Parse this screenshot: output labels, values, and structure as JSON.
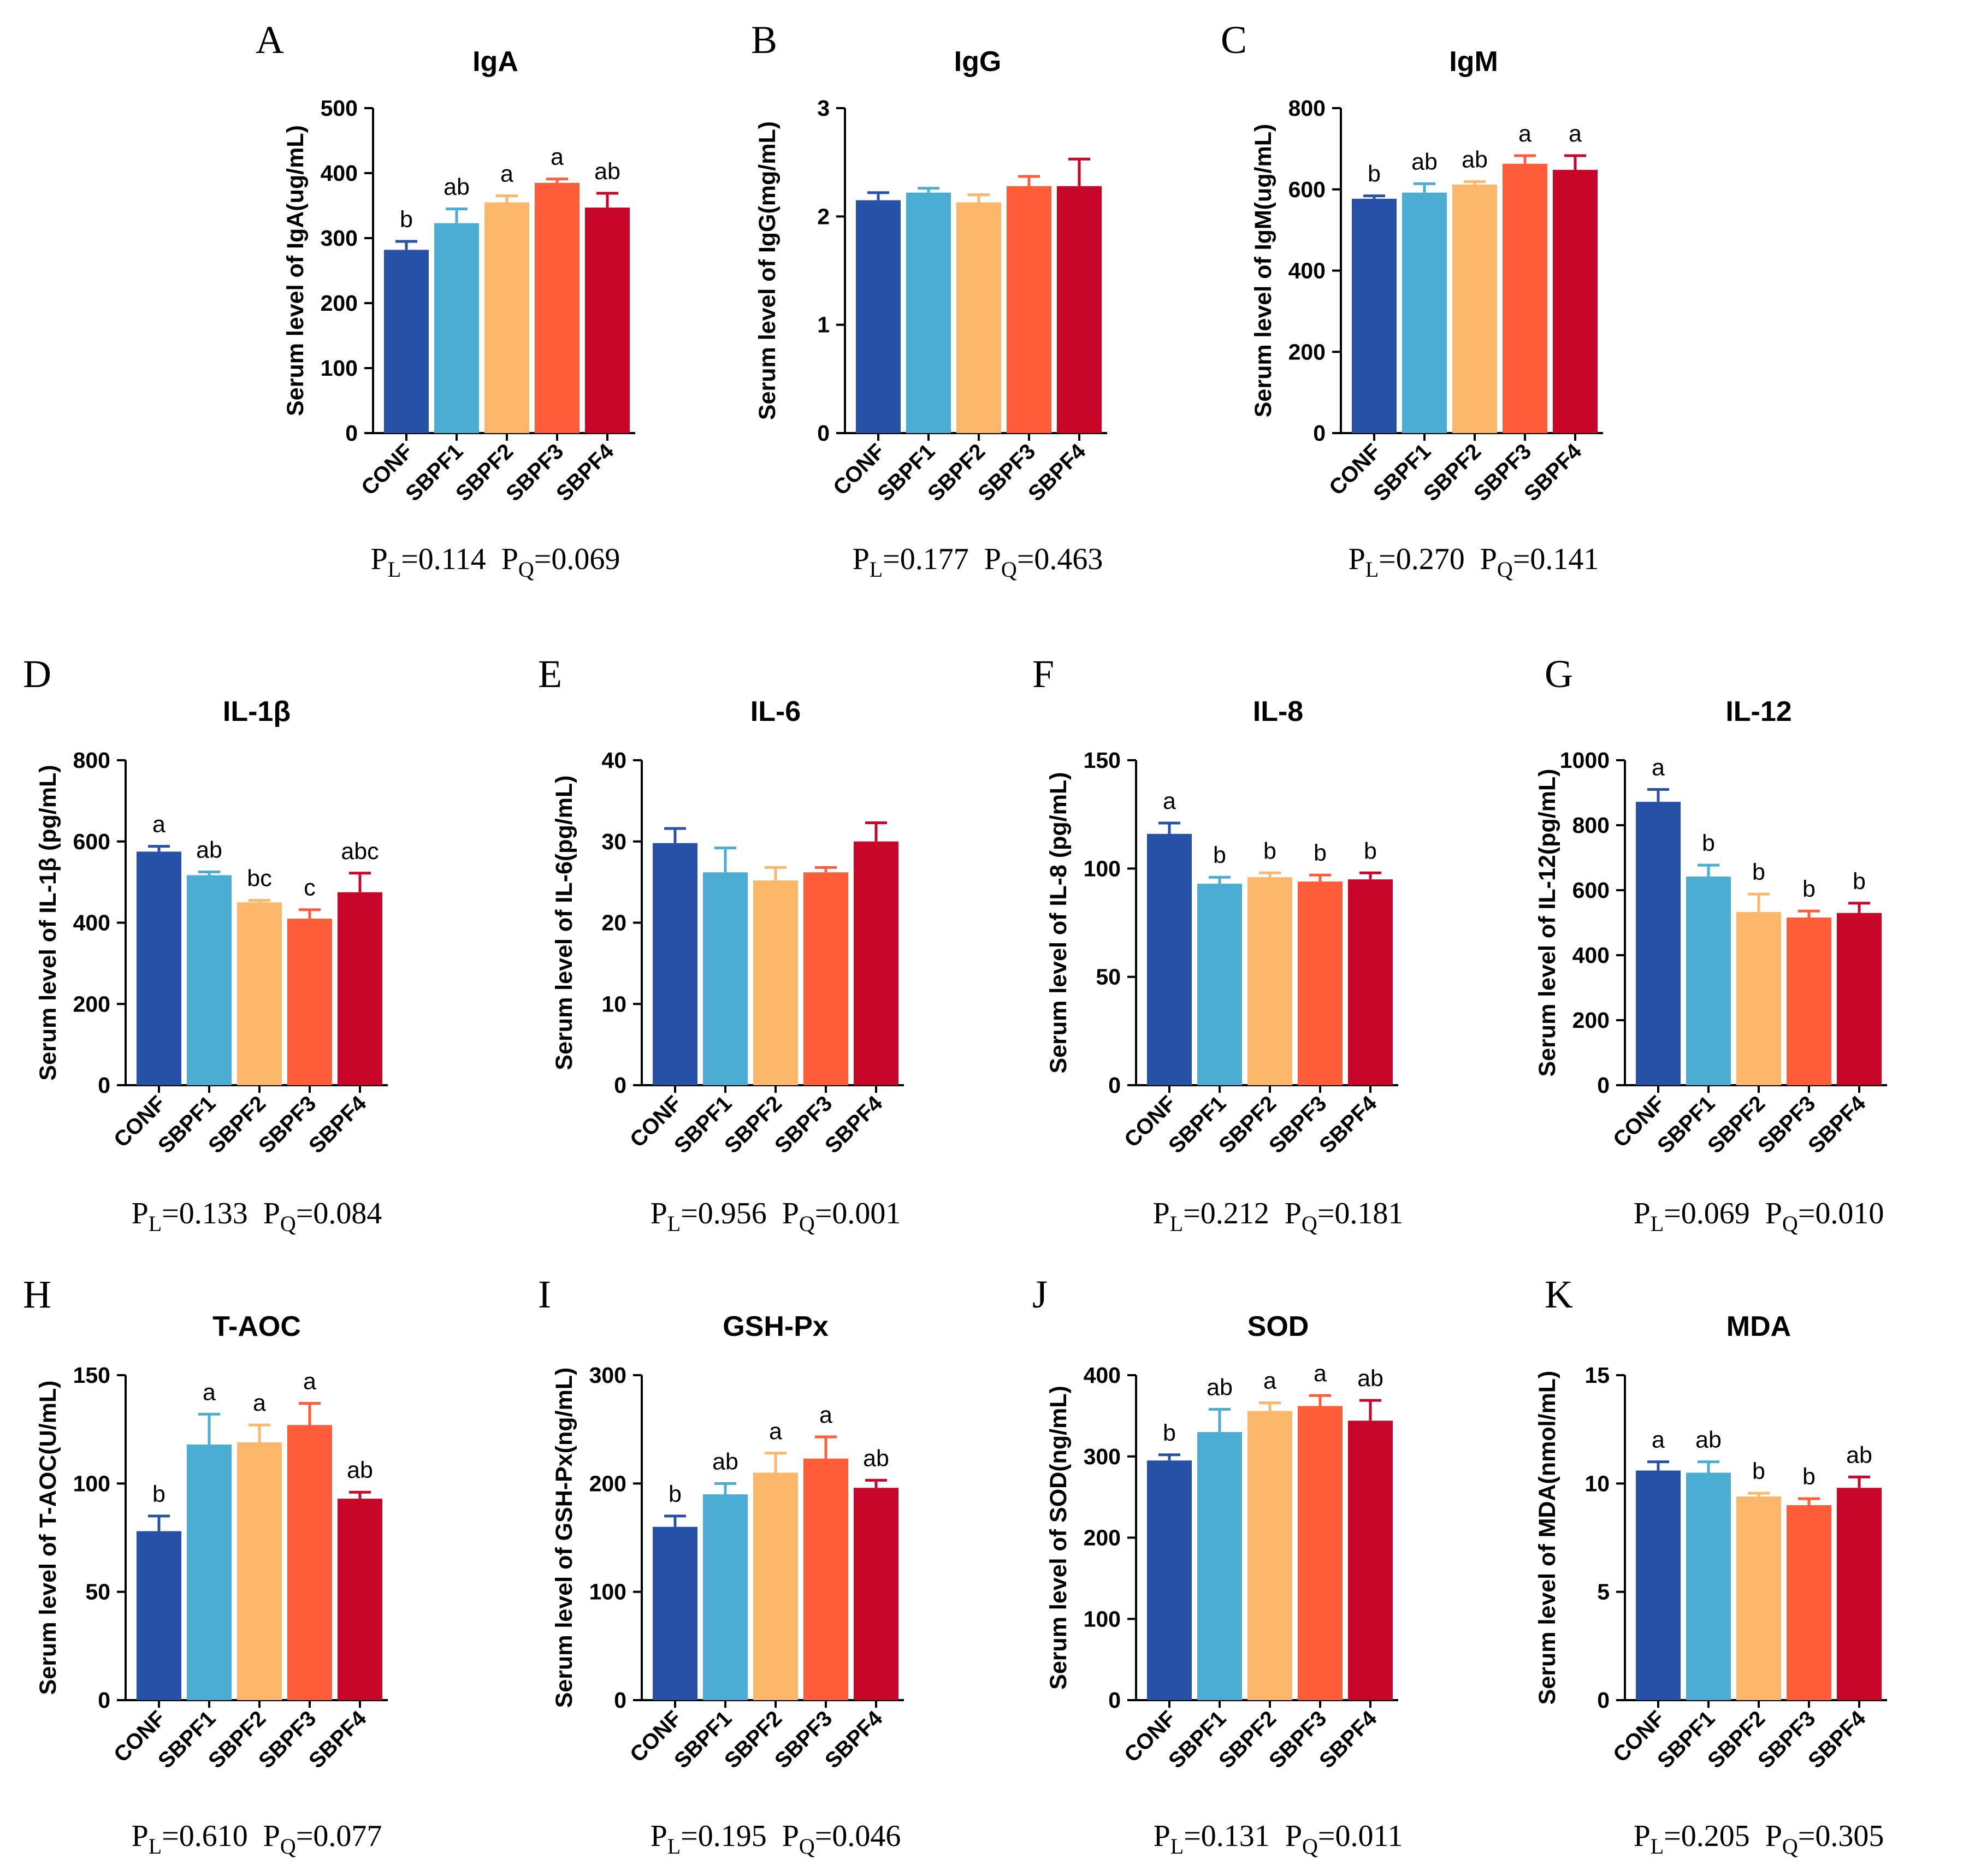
{
  "colors": {
    "CONF": "#2651A6",
    "SBPF1": "#4BACD4",
    "SBPF2": "#FDB76A",
    "SBPF3": "#FF5C3A",
    "SBPF4": "#C8062A"
  },
  "chart_data": [
    {
      "panel": "A",
      "type": "bar",
      "title": "IgA",
      "ylabel": "Serum level of IgA(ug/mL)",
      "categories": [
        "CONF",
        "SBPF1",
        "SBPF2",
        "SBPF3",
        "SBPF4"
      ],
      "values": [
        282,
        323,
        355,
        385,
        347
      ],
      "errors": [
        13,
        22,
        10,
        6,
        22
      ],
      "sig": [
        "b",
        "ab",
        "a",
        "a",
        "ab"
      ],
      "ylim": [
        0,
        500
      ],
      "yticks": [
        0,
        100,
        200,
        300,
        400,
        500
      ],
      "ytick_labels": [
        "0",
        "100",
        "200",
        "300",
        "400",
        "500"
      ],
      "pl_prefix": "P",
      "pl_sub": "L",
      "pl_value": "=0.114",
      "pq_prefix": "P",
      "pq_sub": "Q",
      "pq_value": "=0.069"
    },
    {
      "panel": "B",
      "type": "bar",
      "title": "IgG",
      "ylabel": "Serum level of IgG(mg/mL)",
      "categories": [
        "CONF",
        "SBPF1",
        "SBPF2",
        "SBPF3",
        "SBPF4"
      ],
      "values": [
        2.15,
        2.22,
        2.13,
        2.28,
        2.28
      ],
      "errors": [
        0.07,
        0.04,
        0.07,
        0.09,
        0.25
      ],
      "sig": [
        "",
        "",
        "",
        "",
        ""
      ],
      "ylim": [
        0,
        3
      ],
      "yticks": [
        0,
        1,
        2,
        3
      ],
      "ytick_labels": [
        "0",
        "1",
        "2",
        "3"
      ],
      "pl_prefix": "P",
      "pl_sub": "L",
      "pl_value": "=0.177",
      "pq_prefix": "P",
      "pq_sub": "Q",
      "pq_value": "=0.463"
    },
    {
      "panel": "C",
      "type": "bar",
      "title": "IgM",
      "ylabel": "Serum level of IgM(ug/mL)",
      "categories": [
        "CONF",
        "SBPF1",
        "SBPF2",
        "SBPF3",
        "SBPF4"
      ],
      "values": [
        577,
        592,
        612,
        663,
        648
      ],
      "errors": [
        7,
        22,
        7,
        20,
        35
      ],
      "sig": [
        "b",
        "ab",
        "ab",
        "a",
        "a"
      ],
      "ylim": [
        0,
        800
      ],
      "yticks": [
        0,
        200,
        400,
        600,
        800
      ],
      "ytick_labels": [
        "0",
        "200",
        "400",
        "600",
        "800"
      ],
      "pl_prefix": "P",
      "pl_sub": "L",
      "pl_value": "=0.270",
      "pq_prefix": "P",
      "pq_sub": "Q",
      "pq_value": "=0.141"
    },
    {
      "panel": "D",
      "type": "bar",
      "title": "IL-1β",
      "ylabel": "Serum level of IL-1β (pg/mL)",
      "categories": [
        "CONF",
        "SBPF1",
        "SBPF2",
        "SBPF3",
        "SBPF4"
      ],
      "values": [
        575,
        517,
        450,
        410,
        475
      ],
      "errors": [
        13,
        8,
        5,
        22,
        47
      ],
      "sig": [
        "a",
        "ab",
        "bc",
        "c",
        "abc"
      ],
      "ylim": [
        0,
        800
      ],
      "yticks": [
        0,
        200,
        400,
        600,
        800
      ],
      "ytick_labels": [
        "0",
        "200",
        "400",
        "600",
        "800"
      ],
      "pl_prefix": "P",
      "pl_sub": "L",
      "pl_value": "=0.133",
      "pq_prefix": "P",
      "pq_sub": "Q",
      "pq_value": "=0.084"
    },
    {
      "panel": "E",
      "type": "bar",
      "title": "IL-6",
      "ylabel": "Serum level of IL-6(pg/mL)",
      "categories": [
        "CONF",
        "SBPF1",
        "SBPF2",
        "SBPF3",
        "SBPF4"
      ],
      "values": [
        29.8,
        26.2,
        25.2,
        26.2,
        30.0
      ],
      "errors": [
        1.8,
        3.0,
        1.6,
        0.6,
        2.3
      ],
      "sig": [
        "",
        "",
        "",
        "",
        ""
      ],
      "ylim": [
        0,
        40
      ],
      "yticks": [
        0,
        10,
        20,
        30,
        40
      ],
      "ytick_labels": [
        "0",
        "10",
        "20",
        "30",
        "40"
      ],
      "pl_prefix": "P",
      "pl_sub": "L",
      "pl_value": "=0.956",
      "pq_prefix": "P",
      "pq_sub": "Q",
      "pq_value": "=0.001"
    },
    {
      "panel": "F",
      "type": "bar",
      "title": "IL-8",
      "ylabel": "Serum level of IL-8 (pg/mL)",
      "categories": [
        "CONF",
        "SBPF1",
        "SBPF2",
        "SBPF3",
        "SBPF4"
      ],
      "values": [
        116,
        93,
        96,
        94,
        95
      ],
      "errors": [
        5,
        3,
        2,
        3,
        3
      ],
      "sig": [
        "a",
        "b",
        "b",
        "b",
        "b"
      ],
      "ylim": [
        0,
        150
      ],
      "yticks": [
        0,
        50,
        100,
        150
      ],
      "ytick_labels": [
        "0",
        "50",
        "100",
        "150"
      ],
      "pl_prefix": "P",
      "pl_sub": "L",
      "pl_value": "=0.212",
      "pq_prefix": "P",
      "pq_sub": "Q",
      "pq_value": "=0.181"
    },
    {
      "panel": "G",
      "type": "bar",
      "title": "IL-12",
      "ylabel": "Serum level of IL-12(pg/mL)",
      "categories": [
        "CONF",
        "SBPF1",
        "SBPF2",
        "SBPF3",
        "SBPF4"
      ],
      "values": [
        872,
        642,
        533,
        516,
        530
      ],
      "errors": [
        38,
        35,
        55,
        20,
        30
      ],
      "sig": [
        "a",
        "b",
        "b",
        "b",
        "b"
      ],
      "ylim": [
        0,
        1000
      ],
      "yticks": [
        0,
        200,
        400,
        600,
        800,
        1000
      ],
      "ytick_labels": [
        "0",
        "200",
        "400",
        "600",
        "800",
        "1000"
      ],
      "pl_prefix": "P",
      "pl_sub": "L",
      "pl_value": "=0.069",
      "pq_prefix": "P",
      "pq_sub": "Q",
      "pq_value": "=0.010"
    },
    {
      "panel": "H",
      "type": "bar",
      "title": "T-AOC",
      "ylabel": "Serum level of T-AOC(U/mL)",
      "categories": [
        "CONF",
        "SBPF1",
        "SBPF2",
        "SBPF3",
        "SBPF4"
      ],
      "values": [
        78,
        118,
        119,
        127,
        93
      ],
      "errors": [
        7,
        14,
        8,
        10,
        3
      ],
      "sig": [
        "b",
        "a",
        "a",
        "a",
        "ab"
      ],
      "ylim": [
        0,
        150
      ],
      "yticks": [
        0,
        50,
        100,
        150
      ],
      "ytick_labels": [
        "0",
        "50",
        "100",
        "150"
      ],
      "pl_prefix": "P",
      "pl_sub": "L",
      "pl_value": "=0.610",
      "pq_prefix": "P",
      "pq_sub": "Q",
      "pq_value": "=0.077"
    },
    {
      "panel": "I",
      "type": "bar",
      "title": "GSH-Px",
      "ylabel": "Serum level of GSH-Px(ng/mL)",
      "categories": [
        "CONF",
        "SBPF1",
        "SBPF2",
        "SBPF3",
        "SBPF4"
      ],
      "values": [
        160,
        190,
        210,
        223,
        196
      ],
      "errors": [
        10,
        10,
        18,
        20,
        7
      ],
      "sig": [
        "b",
        "ab",
        "a",
        "a",
        "ab"
      ],
      "ylim": [
        0,
        300
      ],
      "yticks": [
        0,
        100,
        200,
        300
      ],
      "ytick_labels": [
        "0",
        "100",
        "200",
        "300"
      ],
      "pl_prefix": "P",
      "pl_sub": "L",
      "pl_value": "=0.195",
      "pq_prefix": "P",
      "pq_sub": "Q",
      "pq_value": "=0.046"
    },
    {
      "panel": "J",
      "type": "bar",
      "title": "SOD",
      "ylabel": "Serum level of SOD(ng/mL)",
      "categories": [
        "CONF",
        "SBPF1",
        "SBPF2",
        "SBPF3",
        "SBPF4"
      ],
      "values": [
        295,
        330,
        356,
        362,
        344
      ],
      "errors": [
        7,
        28,
        10,
        13,
        25
      ],
      "sig": [
        "b",
        "ab",
        "a",
        "a",
        "ab"
      ],
      "ylim": [
        0,
        400
      ],
      "yticks": [
        0,
        100,
        200,
        300,
        400
      ],
      "ytick_labels": [
        "0",
        "100",
        "200",
        "300",
        "400"
      ],
      "pl_prefix": "P",
      "pl_sub": "L",
      "pl_value": "=0.131",
      "pq_prefix": "P",
      "pq_sub": "Q",
      "pq_value": "=0.011"
    },
    {
      "panel": "K",
      "type": "bar",
      "title": "MDA",
      "ylabel": "Serum level of MDA(nmol/mL)",
      "categories": [
        "CONF",
        "SBPF1",
        "SBPF2",
        "SBPF3",
        "SBPF4"
      ],
      "values": [
        10.6,
        10.5,
        9.4,
        9.0,
        9.8
      ],
      "errors": [
        0.4,
        0.5,
        0.15,
        0.3,
        0.5
      ],
      "sig": [
        "a",
        "ab",
        "b",
        "b",
        "ab"
      ],
      "ylim": [
        0,
        15
      ],
      "yticks": [
        0,
        5,
        10,
        15
      ],
      "ytick_labels": [
        "0",
        "5",
        "10",
        "15"
      ],
      "pl_prefix": "P",
      "pl_sub": "L",
      "pl_value": "=0.205",
      "pq_prefix": "P",
      "pq_sub": "Q",
      "pq_value": "=0.305"
    }
  ]
}
